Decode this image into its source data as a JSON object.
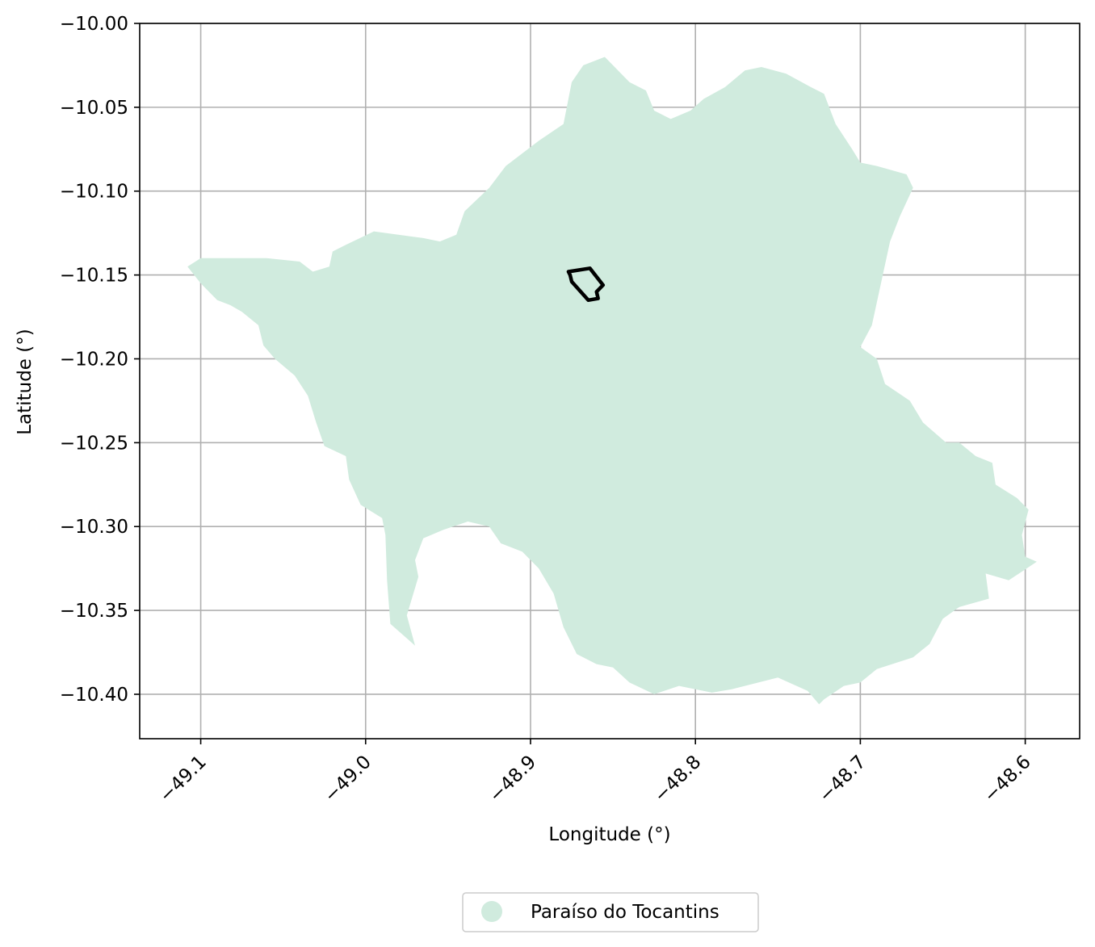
{
  "chart_data": {
    "type": "map",
    "xlabel": "Longitude (°)",
    "ylabel": "Latitude (°)",
    "xlim": [
      -49.137,
      -48.567
    ],
    "ylim": [
      -10.4265,
      -10.0
    ],
    "xticks": [
      -49.1,
      -49.0,
      -48.9,
      -48.8,
      -48.7,
      -48.6
    ],
    "xtick_labels": [
      "−49.1",
      "−49.0",
      "−48.9",
      "−48.8",
      "−48.7",
      "−48.6"
    ],
    "xtick_rotation_deg": 45,
    "yticks": [
      -10.0,
      -10.05,
      -10.1,
      -10.15,
      -10.2,
      -10.25,
      -10.3,
      -10.35,
      -10.4
    ],
    "ytick_labels": [
      "−10.00",
      "−10.05",
      "−10.10",
      "−10.15",
      "−10.20",
      "−10.25",
      "−10.30",
      "−10.35",
      "−10.40"
    ],
    "grid": true,
    "legend_position": "bottom-center",
    "series": [
      {
        "name": "Paraíso do Tocantins",
        "kind": "filled-polygon",
        "color": "#d0ebde",
        "points": [
          [
            -49.108,
            -10.145
          ],
          [
            -49.1,
            -10.14
          ],
          [
            -49.06,
            -10.14
          ],
          [
            -49.04,
            -10.142
          ],
          [
            -49.032,
            -10.148
          ],
          [
            -49.022,
            -10.145
          ],
          [
            -49.02,
            -10.136
          ],
          [
            -49.012,
            -10.132
          ],
          [
            -48.995,
            -10.124
          ],
          [
            -48.965,
            -10.128
          ],
          [
            -48.955,
            -10.13
          ],
          [
            -48.945,
            -10.126
          ],
          [
            -48.94,
            -10.112
          ],
          [
            -48.925,
            -10.098
          ],
          [
            -48.915,
            -10.085
          ],
          [
            -48.895,
            -10.07
          ],
          [
            -48.88,
            -10.06
          ],
          [
            -48.875,
            -10.035
          ],
          [
            -48.868,
            -10.025
          ],
          [
            -48.855,
            -10.02
          ],
          [
            -48.84,
            -10.035
          ],
          [
            -48.83,
            -10.04
          ],
          [
            -48.825,
            -10.052
          ],
          [
            -48.815,
            -10.057
          ],
          [
            -48.803,
            -10.052
          ],
          [
            -48.795,
            -10.045
          ],
          [
            -48.782,
            -10.038
          ],
          [
            -48.77,
            -10.028
          ],
          [
            -48.76,
            -10.026
          ],
          [
            -48.745,
            -10.03
          ],
          [
            -48.73,
            -10.038
          ],
          [
            -48.722,
            -10.042
          ],
          [
            -48.715,
            -10.06
          ],
          [
            -48.705,
            -10.075
          ],
          [
            -48.7,
            -10.083
          ],
          [
            -48.69,
            -10.085
          ],
          [
            -48.672,
            -10.09
          ],
          [
            -48.668,
            -10.098
          ],
          [
            -48.676,
            -10.115
          ],
          [
            -48.682,
            -10.13
          ],
          [
            -48.693,
            -10.18
          ],
          [
            -48.7,
            -10.193
          ],
          [
            -48.69,
            -10.2
          ],
          [
            -48.685,
            -10.215
          ],
          [
            -48.67,
            -10.225
          ],
          [
            -48.662,
            -10.238
          ],
          [
            -48.648,
            -10.25
          ],
          [
            -48.64,
            -10.25
          ],
          [
            -48.63,
            -10.258
          ],
          [
            -48.62,
            -10.262
          ],
          [
            -48.618,
            -10.275
          ],
          [
            -48.605,
            -10.283
          ],
          [
            -48.598,
            -10.29
          ],
          [
            -48.602,
            -10.305
          ],
          [
            -48.6,
            -10.318
          ],
          [
            -48.593,
            -10.321
          ],
          [
            -48.61,
            -10.332
          ],
          [
            -48.624,
            -10.328
          ],
          [
            -48.622,
            -10.343
          ],
          [
            -48.64,
            -10.348
          ],
          [
            -48.65,
            -10.355
          ],
          [
            -48.658,
            -10.37
          ],
          [
            -48.668,
            -10.378
          ],
          [
            -48.69,
            -10.385
          ],
          [
            -48.7,
            -10.393
          ],
          [
            -48.71,
            -10.395
          ],
          [
            -48.722,
            -10.403
          ],
          [
            -48.725,
            -10.406
          ],
          [
            -48.732,
            -10.398
          ],
          [
            -48.75,
            -10.39
          ],
          [
            -48.778,
            -10.397
          ],
          [
            -48.79,
            -10.399
          ],
          [
            -48.81,
            -10.395
          ],
          [
            -48.825,
            -10.4
          ],
          [
            -48.84,
            -10.393
          ],
          [
            -48.85,
            -10.384
          ],
          [
            -48.86,
            -10.382
          ],
          [
            -48.872,
            -10.376
          ],
          [
            -48.88,
            -10.36
          ],
          [
            -48.886,
            -10.34
          ],
          [
            -48.895,
            -10.325
          ],
          [
            -48.905,
            -10.315
          ],
          [
            -48.918,
            -10.31
          ],
          [
            -48.925,
            -10.3
          ],
          [
            -48.938,
            -10.297
          ],
          [
            -48.953,
            -10.302
          ],
          [
            -48.965,
            -10.307
          ],
          [
            -48.97,
            -10.32
          ],
          [
            -48.968,
            -10.33
          ],
          [
            -48.975,
            -10.353
          ],
          [
            -48.97,
            -10.371
          ],
          [
            -48.985,
            -10.358
          ],
          [
            -48.987,
            -10.332
          ],
          [
            -48.988,
            -10.305
          ],
          [
            -48.99,
            -10.295
          ],
          [
            -49.003,
            -10.287
          ],
          [
            -49.01,
            -10.272
          ],
          [
            -49.012,
            -10.258
          ],
          [
            -49.025,
            -10.252
          ],
          [
            -49.03,
            -10.238
          ],
          [
            -49.035,
            -10.222
          ],
          [
            -49.043,
            -10.21
          ],
          [
            -49.055,
            -10.2
          ],
          [
            -49.062,
            -10.192
          ],
          [
            -49.065,
            -10.18
          ],
          [
            -49.075,
            -10.172
          ],
          [
            -49.082,
            -10.168
          ],
          [
            -49.09,
            -10.165
          ],
          [
            -49.1,
            -10.155
          ]
        ]
      },
      {
        "kind": "outline",
        "color": "#000000",
        "points": [
          [
            -48.877,
            -10.148
          ],
          [
            -48.864,
            -10.146
          ],
          [
            -48.856,
            -10.156
          ],
          [
            -48.86,
            -10.16
          ],
          [
            -48.859,
            -10.164
          ],
          [
            -48.865,
            -10.165
          ],
          [
            -48.875,
            -10.154
          ],
          [
            -48.876,
            -10.15
          ]
        ]
      }
    ]
  }
}
